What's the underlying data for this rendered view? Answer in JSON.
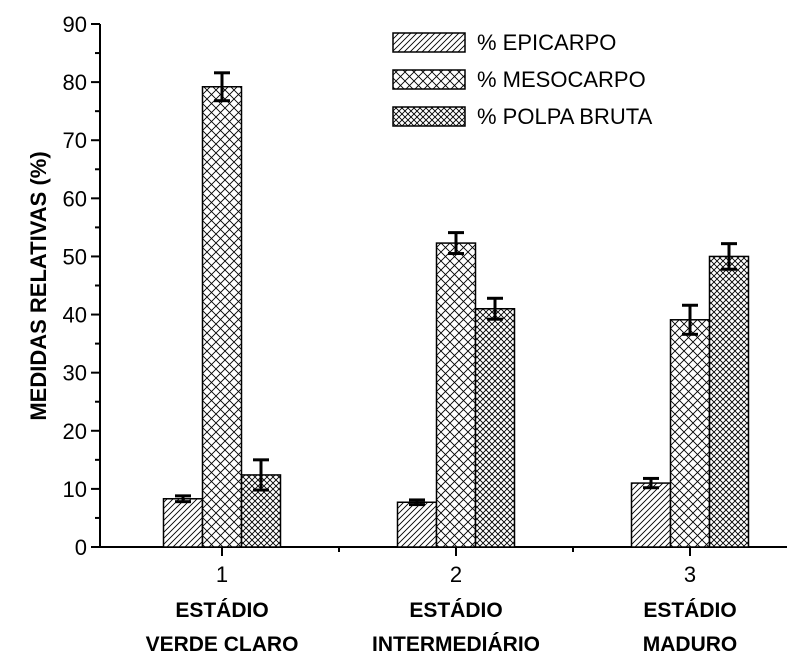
{
  "chart_data": {
    "type": "bar",
    "ylabel": "MEDIDAS RELATIVAS (%)",
    "ylim": [
      0,
      90
    ],
    "yticks": [
      0,
      10,
      20,
      30,
      40,
      50,
      60,
      70,
      80,
      90
    ],
    "x": [
      1,
      2,
      3
    ],
    "category_labels": [
      [
        "ESTÁDIO",
        "VERDE CLARO"
      ],
      [
        "ESTÁDIO",
        "INTERMEDIÁRIO"
      ],
      [
        "ESTÁDIO",
        "MADURO"
      ]
    ],
    "legend_position": "top-right",
    "series": [
      {
        "name": "% EPICARPO",
        "pattern": "diagonal-hatch",
        "values": [
          8.3,
          7.7,
          11.0
        ],
        "errors": [
          0.5,
          0.4,
          0.8
        ]
      },
      {
        "name": "% MESOCARPO",
        "pattern": "crosshatch",
        "values": [
          79.2,
          52.3,
          39.1
        ],
        "errors": [
          2.4,
          1.8,
          2.5
        ]
      },
      {
        "name": "% POLPA BRUTA",
        "pattern": "dense-crosshatch",
        "values": [
          12.4,
          41.0,
          50.0
        ],
        "errors": [
          2.6,
          1.8,
          2.2
        ]
      }
    ]
  }
}
